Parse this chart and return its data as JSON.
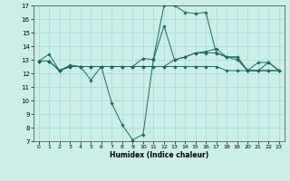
{
  "xlabel": "Humidex (Indice chaleur)",
  "bg_color": "#cceee8",
  "grid_color": "#aaddd8",
  "line_color": "#1a6b5a",
  "xlim": [
    -0.5,
    23.5
  ],
  "ylim": [
    7,
    17
  ],
  "yticks": [
    7,
    8,
    9,
    10,
    11,
    12,
    13,
    14,
    15,
    16,
    17
  ],
  "xticks": [
    0,
    1,
    2,
    3,
    4,
    5,
    6,
    7,
    8,
    9,
    10,
    11,
    12,
    13,
    14,
    15,
    16,
    17,
    18,
    19,
    20,
    21,
    22,
    23
  ],
  "lines": [
    [
      12.9,
      13.4,
      12.2,
      12.6,
      12.5,
      11.5,
      12.5,
      9.8,
      8.2,
      7.1,
      7.5,
      13.1,
      17.0,
      17.0,
      16.5,
      16.4,
      16.5,
      13.5,
      13.2,
      13.2,
      12.2,
      12.2,
      12.8,
      12.2
    ],
    [
      12.9,
      12.9,
      12.2,
      12.5,
      12.5,
      12.5,
      12.5,
      12.5,
      12.5,
      12.5,
      13.1,
      13.0,
      15.5,
      13.0,
      13.2,
      13.5,
      13.6,
      13.8,
      13.2,
      13.2,
      12.2,
      12.8,
      12.8,
      12.2
    ],
    [
      12.9,
      12.9,
      12.2,
      12.5,
      12.5,
      12.5,
      12.5,
      12.5,
      12.5,
      12.5,
      12.5,
      12.5,
      12.5,
      13.0,
      13.2,
      13.5,
      13.5,
      13.5,
      13.2,
      13.0,
      12.2,
      12.2,
      12.2,
      12.2
    ],
    [
      12.9,
      12.9,
      12.2,
      12.5,
      12.5,
      12.5,
      12.5,
      12.5,
      12.5,
      12.5,
      12.5,
      12.5,
      12.5,
      12.5,
      12.5,
      12.5,
      12.5,
      12.5,
      12.2,
      12.2,
      12.2,
      12.2,
      12.2,
      12.2
    ]
  ]
}
